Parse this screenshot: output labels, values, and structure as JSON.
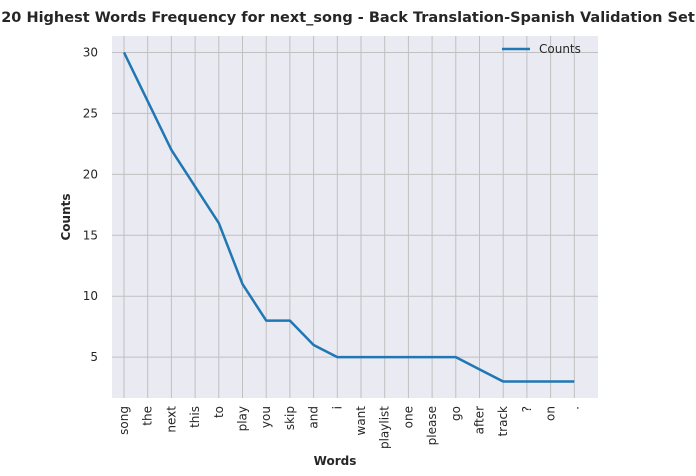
{
  "chart_data": {
    "type": "line",
    "title": "20 Highest Words Frequency for next_song - Back Translation-Spanish Validation Set",
    "xlabel": "Words",
    "ylabel": "Counts",
    "categories": [
      "song",
      "the",
      "next",
      "this",
      "to",
      "play",
      "you",
      "skip",
      "and",
      "i",
      "want",
      "playlist",
      "one",
      "please",
      "go",
      "after",
      "track",
      "?",
      "on",
      "."
    ],
    "series": [
      {
        "name": "Counts",
        "values": [
          30,
          26,
          22,
          19,
          16,
          11,
          8,
          8,
          6,
          5,
          5,
          5,
          5,
          5,
          5,
          4,
          3,
          3,
          3,
          3
        ],
        "color": "#1f77b4"
      }
    ],
    "yticks": [
      5,
      10,
      15,
      20,
      25,
      30
    ],
    "ylim": [
      1.65,
      31.35
    ],
    "grid": true,
    "legend_position": "top-right",
    "background": "#eaeaf2",
    "grid_color": "#c0c0c0"
  }
}
